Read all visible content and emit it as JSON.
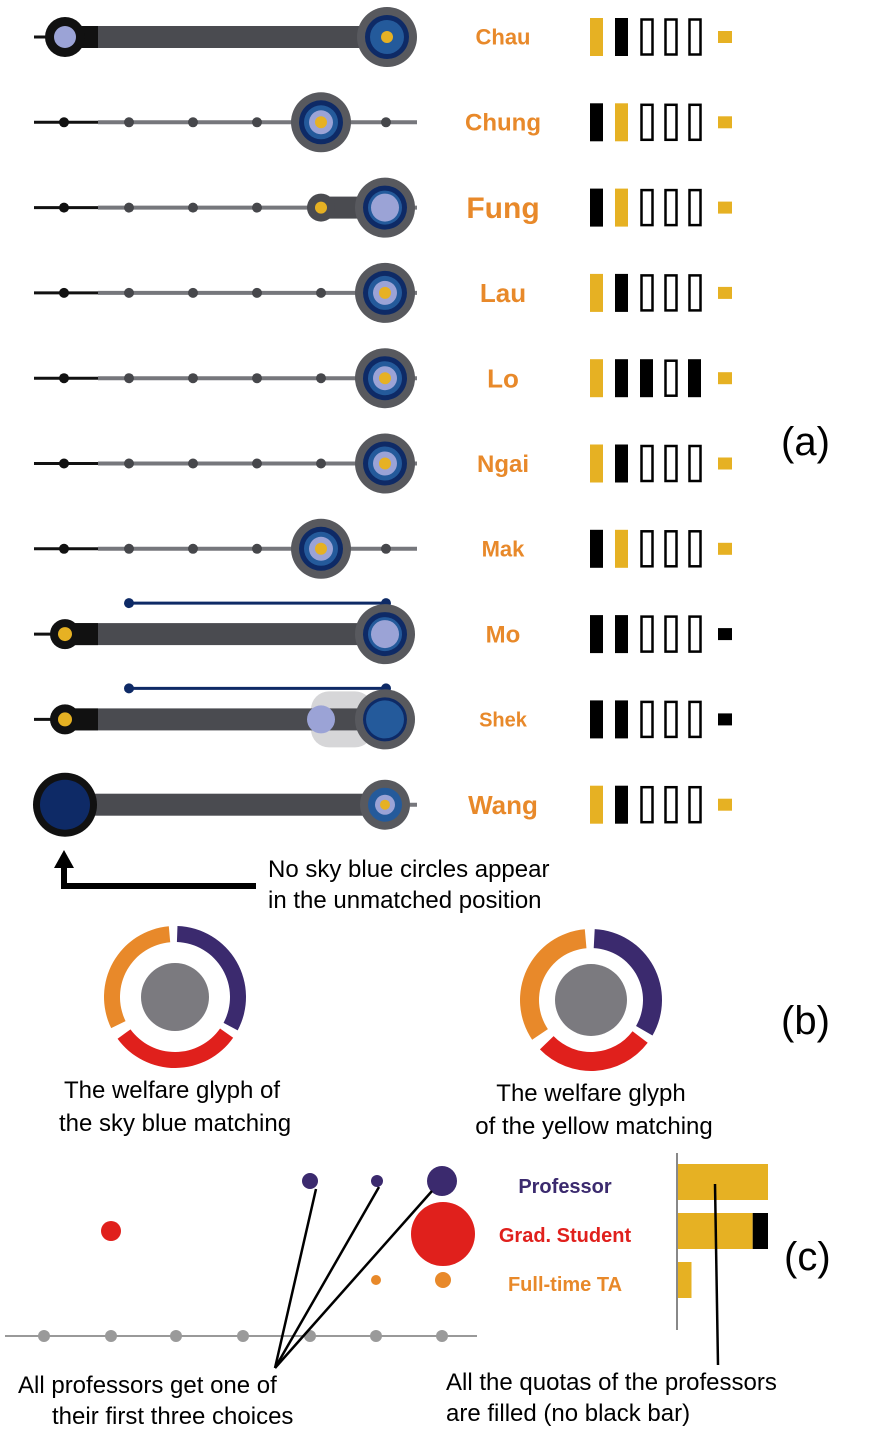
{
  "colors": {
    "track": "#4a4b50",
    "thin_track": "#76777c",
    "dot": "#333438",
    "sky_blue": "#9ba3d6",
    "navy": "#0e2a66",
    "ring_blue": "#245a9b",
    "yellow": "#e6b123",
    "black": "#000000",
    "orange": "#e8892a",
    "purple": "#3b2a6e",
    "red": "#e0201c",
    "gray_center": "#7b7a7f"
  },
  "panel_a": {
    "label": "(a)",
    "rows": [
      {
        "name": "Chau",
        "quota": [
          {
            "type": "yellow"
          },
          {
            "type": "black"
          },
          {
            "type": "empty"
          },
          {
            "type": "empty"
          },
          {
            "type": "empty"
          }
        ],
        "marker": "yellow"
      },
      {
        "name": "Chung",
        "quota": [
          {
            "type": "black"
          },
          {
            "type": "yellow"
          },
          {
            "type": "empty"
          },
          {
            "type": "empty"
          },
          {
            "type": "empty"
          }
        ],
        "marker": "yellow"
      },
      {
        "name": "Fung",
        "quota": [
          {
            "type": "black"
          },
          {
            "type": "yellow"
          },
          {
            "type": "empty"
          },
          {
            "type": "empty"
          },
          {
            "type": "empty"
          }
        ],
        "marker": "yellow"
      },
      {
        "name": "Lau",
        "quota": [
          {
            "type": "yellow"
          },
          {
            "type": "black"
          },
          {
            "type": "empty"
          },
          {
            "type": "empty"
          },
          {
            "type": "empty"
          }
        ],
        "marker": "yellow"
      },
      {
        "name": "Lo",
        "quota": [
          {
            "type": "yellow"
          },
          {
            "type": "black"
          },
          {
            "type": "black"
          },
          {
            "type": "empty"
          },
          {
            "type": "black"
          }
        ],
        "marker": "yellow"
      },
      {
        "name": "Ngai",
        "quota": [
          {
            "type": "yellow"
          },
          {
            "type": "black"
          },
          {
            "type": "empty"
          },
          {
            "type": "empty"
          },
          {
            "type": "empty"
          }
        ],
        "marker": "yellow"
      },
      {
        "name": "Mak",
        "quota": [
          {
            "type": "black"
          },
          {
            "type": "yellow"
          },
          {
            "type": "empty"
          },
          {
            "type": "empty"
          },
          {
            "type": "empty"
          }
        ],
        "marker": "yellow"
      },
      {
        "name": "Mo",
        "quota": [
          {
            "type": "black"
          },
          {
            "type": "black"
          },
          {
            "type": "empty"
          },
          {
            "type": "empty"
          },
          {
            "type": "empty"
          }
        ],
        "marker": "black"
      },
      {
        "name": "Shek",
        "quota": [
          {
            "type": "black"
          },
          {
            "type": "black"
          },
          {
            "type": "empty"
          },
          {
            "type": "empty"
          },
          {
            "type": "empty"
          }
        ],
        "marker": "black"
      },
      {
        "name": "Wang",
        "quota": [
          {
            "type": "yellow"
          },
          {
            "type": "black"
          },
          {
            "type": "empty"
          },
          {
            "type": "empty"
          },
          {
            "type": "empty"
          }
        ],
        "marker": "yellow"
      }
    ],
    "annotation_line1": "No sky blue circles appear",
    "annotation_line2": "in the unmatched position"
  },
  "panel_b": {
    "label": "(b)",
    "glyphs": [
      {
        "caption_line1": "The welfare glyph of",
        "caption_line2": "the sky blue matching"
      },
      {
        "caption_line1": "The welfare glyph",
        "caption_line2": "of the yellow matching"
      }
    ]
  },
  "panel_c": {
    "label": "(c)",
    "legend": [
      {
        "label": "Professor",
        "color": "#3b2a6e",
        "yellow_fill": 1.0,
        "black_fill": 0.0
      },
      {
        "label": "Grad. Student",
        "color": "#e0201c",
        "yellow_fill": 0.83,
        "black_fill": 0.17
      },
      {
        "label": "Full-time TA",
        "color": "#e8892a",
        "yellow_fill": 0.15,
        "black_fill": 0.0
      }
    ],
    "left_caption_line1": "All professors get one of",
    "left_caption_line2": "their first three choices",
    "right_caption_line1": "All the quotas of the professors",
    "right_caption_line2": "are filled (no black bar)"
  }
}
